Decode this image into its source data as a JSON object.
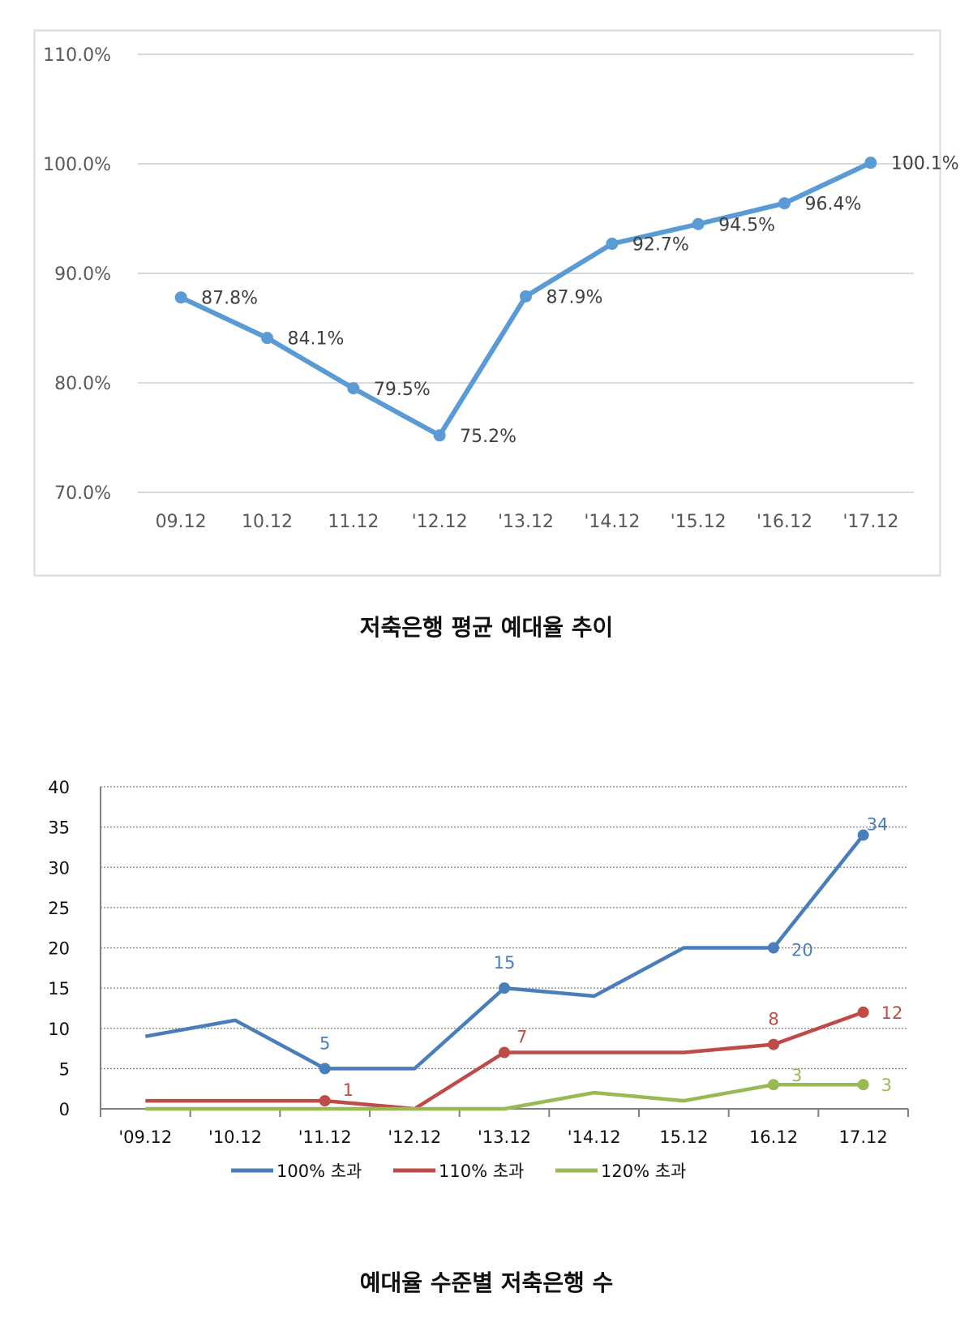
{
  "chart_data": [
    {
      "type": "line",
      "title": "저축은행 평균 예대율 추이",
      "categories": [
        "09.12",
        "10.12",
        "11.12",
        "'12.12",
        "'13.12",
        "'14.12",
        "'15.12",
        "'16.12",
        "'17.12"
      ],
      "series": [
        {
          "name": "평균 예대율",
          "color": "#5b9bd5",
          "values": [
            87.8,
            84.1,
            79.5,
            75.2,
            87.9,
            92.7,
            94.5,
            96.4,
            100.1
          ],
          "labels": [
            "87.8%",
            "84.1%",
            "79.5%",
            "75.2%",
            "87.9%",
            "92.7%",
            "94.5%",
            "96.4%",
            "100.1%"
          ]
        }
      ],
      "yticks": [
        "70.0%",
        "80.0%",
        "90.0%",
        "100.0%",
        "110.0%"
      ],
      "ylim": [
        70,
        110
      ],
      "xlabel": "",
      "ylabel": "",
      "grid": true
    },
    {
      "type": "line",
      "title": "예대율 수준별 저축은행 수",
      "categories": [
        "'09.12",
        "'10.12",
        "'11.12",
        "'12.12",
        "'13.12",
        "'14.12",
        "15.12",
        "16.12",
        "17.12"
      ],
      "series": [
        {
          "name": "100% 초과",
          "color": "#4a7ebb",
          "values": [
            9,
            11,
            5,
            5,
            15,
            14,
            20,
            20,
            34
          ],
          "point_labels": [
            {
              "index": 2,
              "text": "5"
            },
            {
              "index": 4,
              "text": "15"
            },
            {
              "index": 7,
              "text": "20"
            },
            {
              "index": 8,
              "text": "34"
            }
          ]
        },
        {
          "name": "110% 초과",
          "color": "#be4b48",
          "values": [
            1,
            1,
            1,
            0,
            7,
            7,
            7,
            8,
            12
          ],
          "point_labels": [
            {
              "index": 2,
              "text": "1"
            },
            {
              "index": 4,
              "text": "7"
            },
            {
              "index": 7,
              "text": "8"
            },
            {
              "index": 8,
              "text": "12"
            }
          ]
        },
        {
          "name": "120% 초과",
          "color": "#98b954",
          "values": [
            0,
            0,
            0,
            0,
            0,
            2,
            1,
            3,
            3
          ],
          "point_labels": [
            {
              "index": 7,
              "text": "3"
            },
            {
              "index": 8,
              "text": "3"
            }
          ]
        }
      ],
      "yticks": [
        "0",
        "5",
        "10",
        "15",
        "20",
        "25",
        "30",
        "35",
        "40"
      ],
      "ylim": [
        0,
        40
      ],
      "xlabel": "",
      "ylabel": "",
      "legend": "bottom",
      "grid": true
    }
  ]
}
